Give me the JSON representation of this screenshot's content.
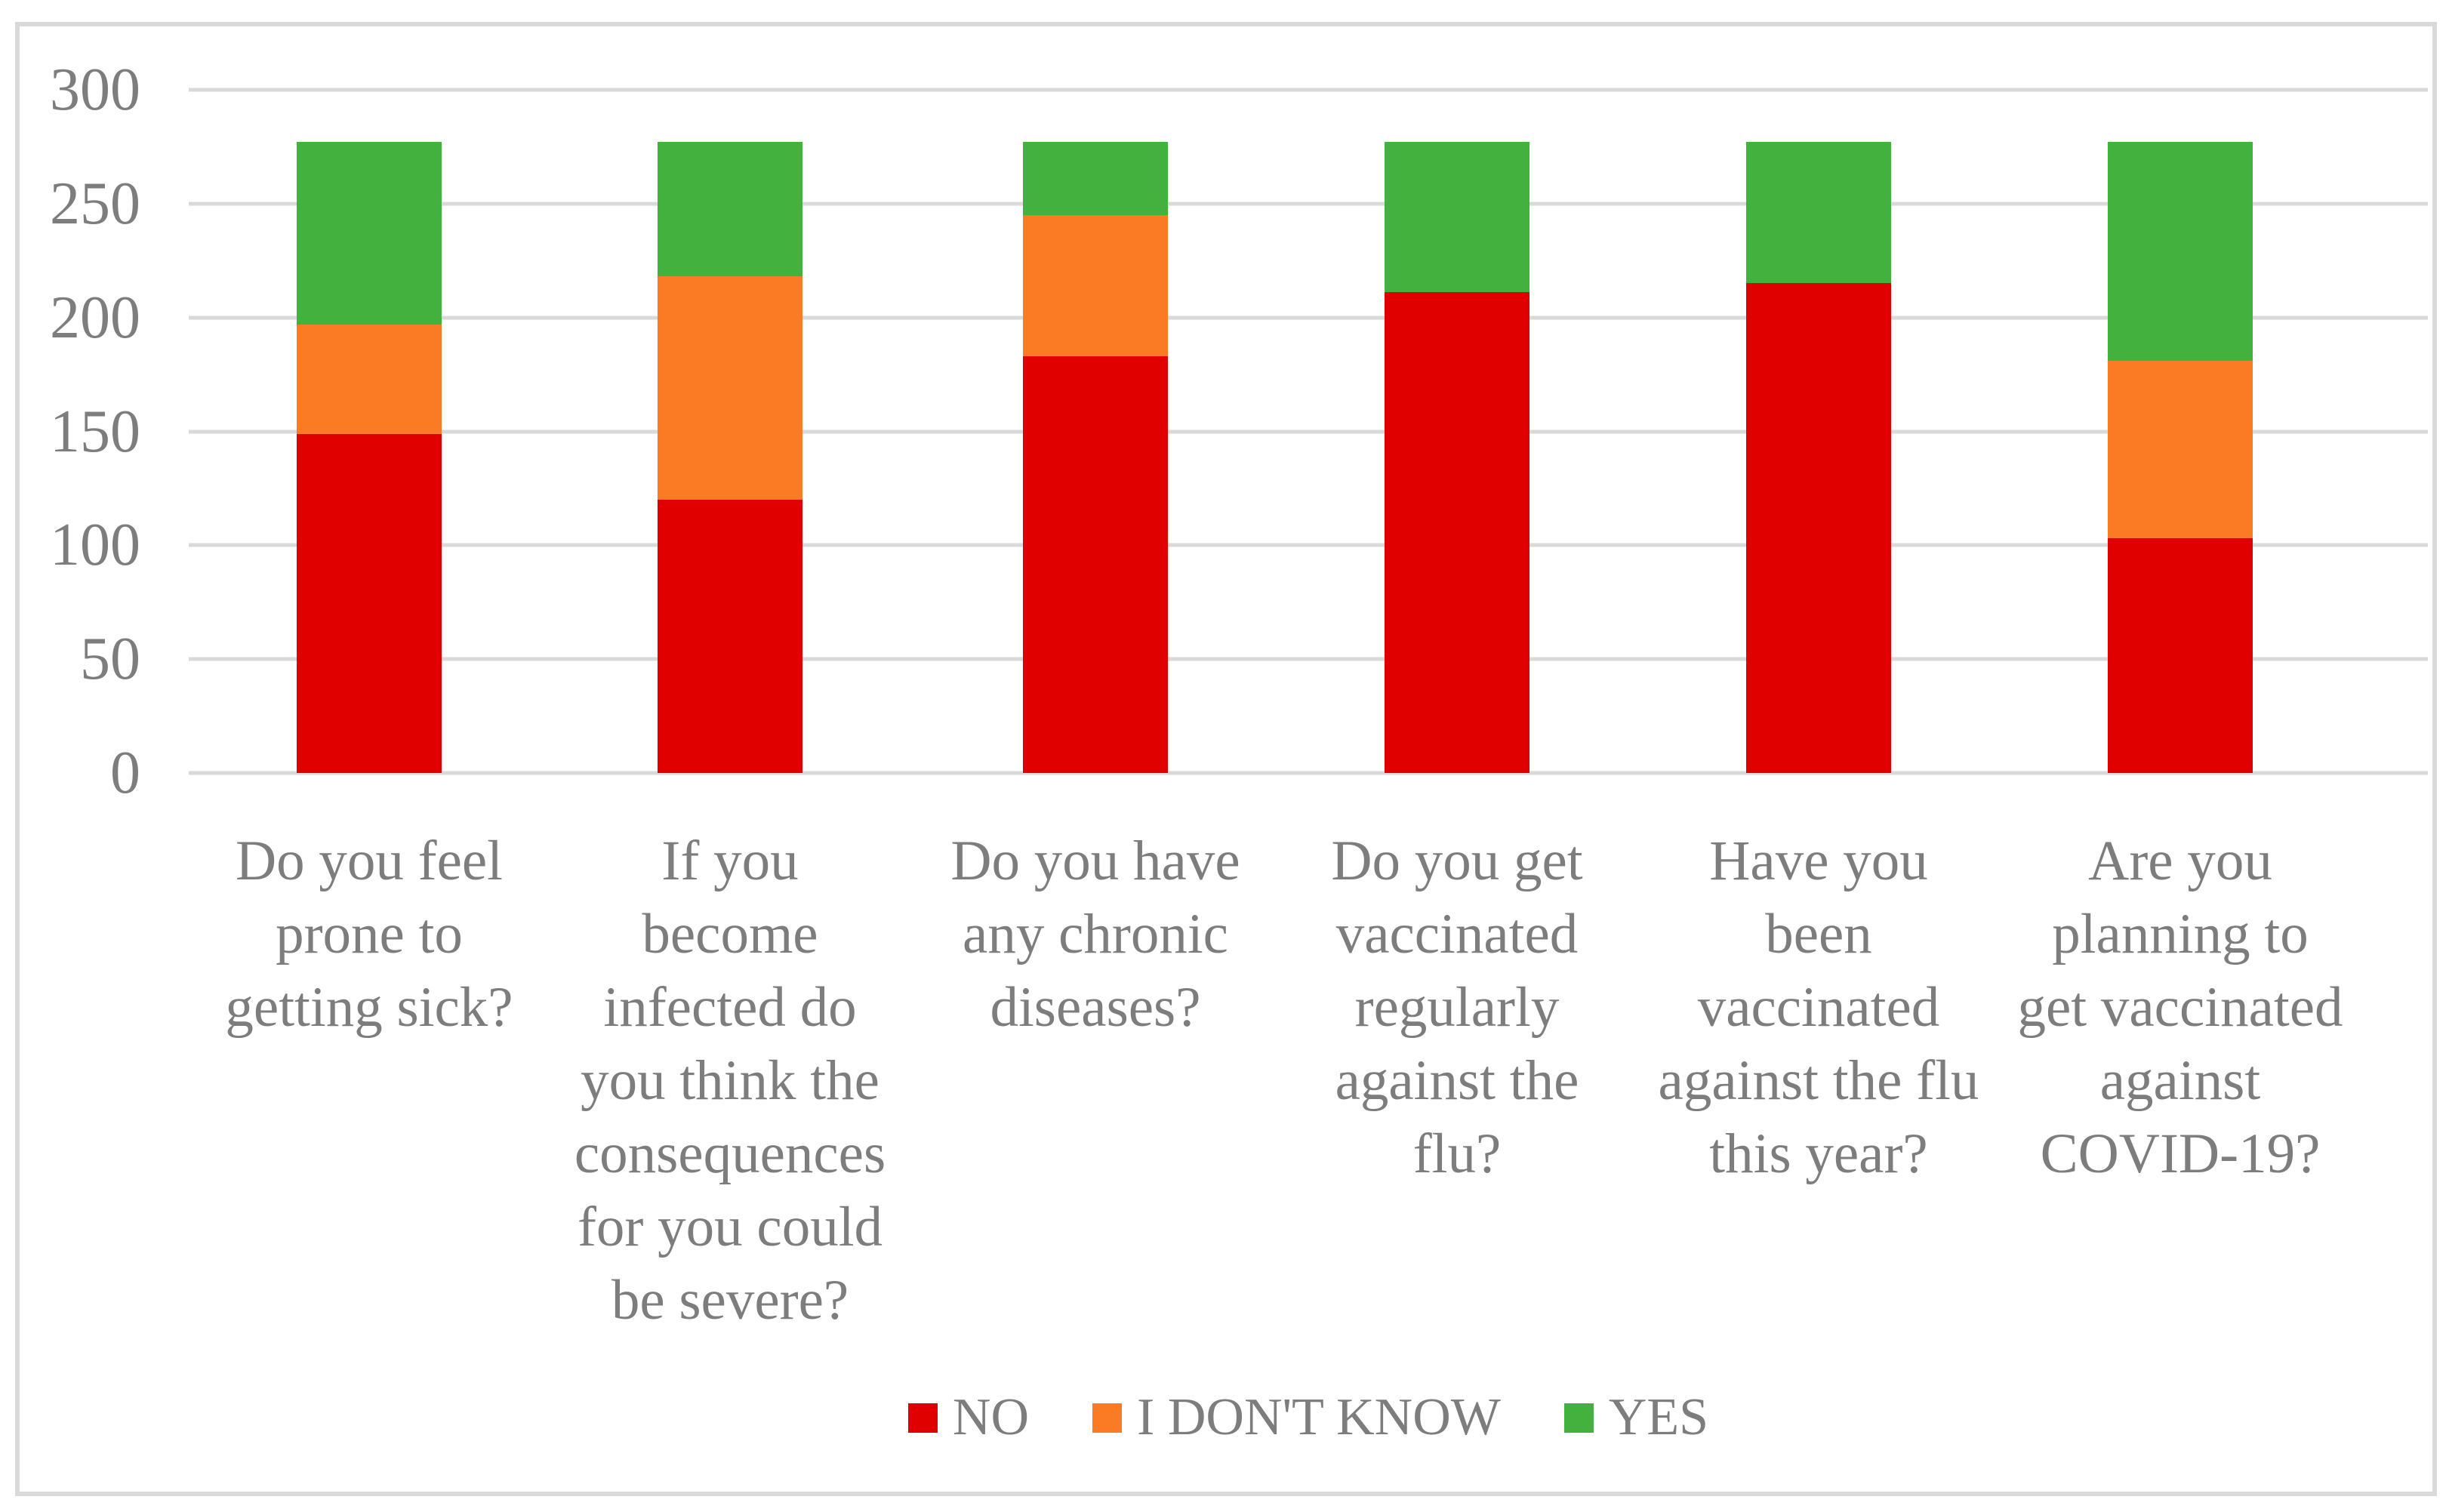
{
  "chart_data": {
    "type": "bar",
    "subtype": "stacked-column",
    "title": "",
    "xlabel": "",
    "ylabel": "",
    "ylim": [
      0,
      300
    ],
    "y_ticks": [
      300,
      250,
      200,
      150,
      100,
      50,
      0
    ],
    "grid": true,
    "categories": [
      "Do you feel prone to getting sick?",
      "If you become infected do you think the consequences for you could be severe?",
      "Do you have any chronic diseases?",
      "Do you get vaccinated regularly against the flu?",
      "Have you been vaccinated against the flu this year?",
      "Are you planning to get vaccinated against COVID-19?"
    ],
    "series": [
      {
        "name": "NO",
        "color": "#E00000",
        "values": [
          149,
          120,
          183,
          211,
          215,
          103
        ]
      },
      {
        "name": "I DON'T KNOW",
        "color": "#FB7B24",
        "values": [
          48,
          98,
          62,
          0,
          0,
          78
        ]
      },
      {
        "name": "YES",
        "color": "#43B13E",
        "values": [
          80,
          59,
          32,
          66,
          62,
          96
        ]
      }
    ],
    "stacked_totals": [
      277,
      277,
      277,
      277,
      277,
      277
    ],
    "legend": {
      "position": "bottom",
      "entries": [
        "NO",
        "I DON'T KNOW",
        "YES"
      ]
    },
    "colors": {
      "gridline": "#D9D9D9",
      "frame_border": "#D9D9D9",
      "axis_text": "#7D7D7D",
      "background": "#FFFFFF"
    }
  }
}
